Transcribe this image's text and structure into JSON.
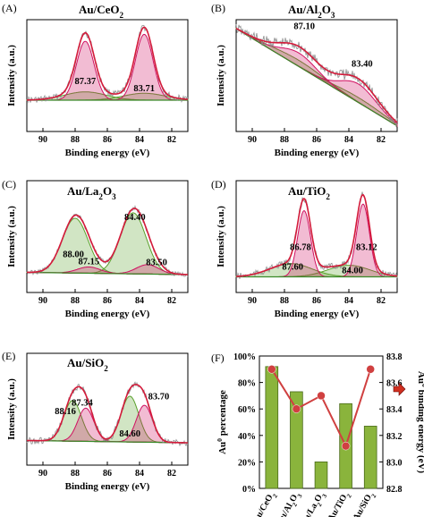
{
  "chart_data": [
    {
      "type": "line",
      "panel_letter": "(A)",
      "title": "Au/CeO",
      "title_sub": "2",
      "xlabel": "Binding energy (eV)",
      "ylabel": "Intensity (a.u.)",
      "xlim": [
        91,
        81
      ],
      "xticks": [
        90,
        88,
        86,
        84,
        82
      ],
      "peak_labels": [
        {
          "x": 87.37,
          "text": "87.37"
        },
        {
          "x": 83.71,
          "text": "83.71"
        }
      ],
      "series": [
        {
          "name": "",
          "color": "#5aa02c",
          "peaks": [
            {
              "c": 87.37,
              "h": 0.12,
              "w": 1.3
            },
            {
              "c": 83.71,
              "h": 0.1,
              "w": 1.3
            }
          ]
        },
        {
          "name": "",
          "color": "#d01060",
          "peaks": [
            {
              "c": 87.37,
              "h": 0.85,
              "w": 0.55
            },
            {
              "c": 83.71,
              "h": 0.95,
              "w": 0.55
            }
          ]
        }
      ]
    },
    {
      "type": "line",
      "panel_letter": "(B)",
      "title": "Au/Al",
      "title_sub": "2",
      "title_tail": "O",
      "title_sub2": "3",
      "xlabel": "Binding energy (eV)",
      "ylabel": "Intensity (a.u.)",
      "xlim": [
        91,
        81
      ],
      "xticks": [
        90,
        88,
        86,
        84,
        82
      ],
      "peak_labels": [
        {
          "x": 87.1,
          "text": "87.10"
        },
        {
          "x": 83.4,
          "text": "83.40"
        }
      ],
      "series": [
        {
          "name": "",
          "color": "#5aa02c",
          "peaks": [
            {
              "c": 87.1,
              "h": 0.1,
              "w": 1.6
            },
            {
              "c": 83.4,
              "h": 0.08,
              "w": 1.6
            }
          ]
        },
        {
          "name": "",
          "color": "#d01060",
          "peaks": [
            {
              "c": 87.1,
              "h": 0.22,
              "w": 1.1
            },
            {
              "c": 83.4,
              "h": 0.3,
              "w": 1.1
            }
          ]
        }
      ]
    },
    {
      "type": "line",
      "panel_letter": "(C)",
      "title": "Au/La",
      "title_sub": "2",
      "title_tail": "O",
      "title_sub2": "3",
      "xlabel": "Binding energy (eV)",
      "ylabel": "Intensity (a.u.)",
      "xlim": [
        91,
        81
      ],
      "xticks": [
        90,
        88,
        86,
        84,
        82
      ],
      "peak_labels": [
        {
          "x": 88.0,
          "text": "88.00"
        },
        {
          "x": 87.15,
          "text": "87.15"
        },
        {
          "x": 84.4,
          "text": "84.40"
        },
        {
          "x": 83.5,
          "text": "83.50"
        }
      ],
      "series": [
        {
          "name": "",
          "color": "#5aa02c",
          "peaks": [
            {
              "c": 88.0,
              "h": 0.7,
              "w": 0.8
            },
            {
              "c": 84.4,
              "h": 0.78,
              "w": 0.8
            }
          ]
        },
        {
          "name": "",
          "color": "#d01060",
          "peaks": [
            {
              "c": 87.15,
              "h": 0.08,
              "w": 0.7
            },
            {
              "c": 83.5,
              "h": 0.12,
              "w": 0.7
            }
          ]
        }
      ]
    },
    {
      "type": "line",
      "panel_letter": "(D)",
      "title": "Au/TiO",
      "title_sub": "2",
      "xlabel": "Binding energy (eV)",
      "ylabel": "Intensity (a.u.)",
      "xlim": [
        91,
        81
      ],
      "xticks": [
        90,
        88,
        86,
        84,
        82
      ],
      "peak_labels": [
        {
          "x": 86.78,
          "text": "86.78"
        },
        {
          "x": 83.12,
          "text": "83.12"
        },
        {
          "x": 87.6,
          "text": "87.60"
        },
        {
          "x": 84.0,
          "text": "84.00"
        }
      ],
      "series": [
        {
          "name": "",
          "color": "#5aa02c",
          "peaks": [
            {
              "c": 87.6,
              "h": 0.16,
              "w": 1.3
            },
            {
              "c": 84.0,
              "h": 0.14,
              "w": 1.3
            }
          ]
        },
        {
          "name": "",
          "color": "#d01060",
          "peaks": [
            {
              "c": 86.78,
              "h": 0.8,
              "w": 0.4
            },
            {
              "c": 83.12,
              "h": 0.88,
              "w": 0.4
            }
          ]
        }
      ]
    },
    {
      "type": "line",
      "panel_letter": "(E)",
      "title": "Au/SiO",
      "title_sub": "2",
      "xlabel": "Binding energy (eV)",
      "ylabel": "Intensity (a.u.)",
      "xlim": [
        91,
        81
      ],
      "xticks": [
        90,
        88,
        86,
        84,
        82
      ],
      "peak_labels": [
        {
          "x": 88.16,
          "text": "88.16"
        },
        {
          "x": 87.34,
          "text": "87.34"
        },
        {
          "x": 84.6,
          "text": "84.60"
        },
        {
          "x": 83.7,
          "text": "83.70"
        }
      ],
      "series": [
        {
          "name": "",
          "color": "#5aa02c",
          "peaks": [
            {
              "c": 88.16,
              "h": 0.55,
              "w": 0.55
            },
            {
              "c": 84.6,
              "h": 0.62,
              "w": 0.55
            }
          ]
        },
        {
          "name": "",
          "color": "#d01060",
          "peaks": [
            {
              "c": 87.34,
              "h": 0.45,
              "w": 0.5
            },
            {
              "c": 83.7,
              "h": 0.5,
              "w": 0.5
            }
          ]
        }
      ]
    },
    {
      "type": "bar",
      "panel_letter": "(F)",
      "categories": [
        "Au/CeO2",
        "Au/Al2O3",
        "Au/La2O3",
        "Au/TiO2",
        "Au/SiO2"
      ],
      "category_labels": [
        {
          "a": "Au/CeO",
          "b": "2",
          "c": "",
          "d": ""
        },
        {
          "a": "Au/Al",
          "b": "2",
          "c": "O",
          "d": "3"
        },
        {
          "a": "Au/La",
          "b": "2",
          "c": "O",
          "d": "3"
        },
        {
          "a": "Au/TiO",
          "b": "2",
          "c": "",
          "d": ""
        },
        {
          "a": "Au/SiO",
          "b": "2",
          "c": "",
          "d": ""
        }
      ],
      "bar_values": [
        92,
        73,
        20,
        64,
        47
      ],
      "line_values": [
        83.7,
        83.4,
        83.5,
        83.12,
        83.7
      ],
      "ylabel_left": "Au",
      "ylabel_left_sup": "0",
      "ylabel_left_tail": " percentage",
      "ylabel_right": "Au",
      "ylabel_right_sup": "0",
      "ylabel_right_tail": " binding energy (eV)",
      "ylim_left": [
        0,
        100
      ],
      "ylim_right": [
        82.8,
        83.8
      ],
      "yticks_left": [
        "0%",
        "20%",
        "40%",
        "60%",
        "80%",
        "100%"
      ],
      "yticks_right": [
        "82.8",
        "83.0",
        "83.2",
        "83.4",
        "83.6",
        "83.8"
      ],
      "bar_color": "#8ab43c",
      "line_color": "#d04040",
      "arrow_color": "#d03020"
    }
  ]
}
